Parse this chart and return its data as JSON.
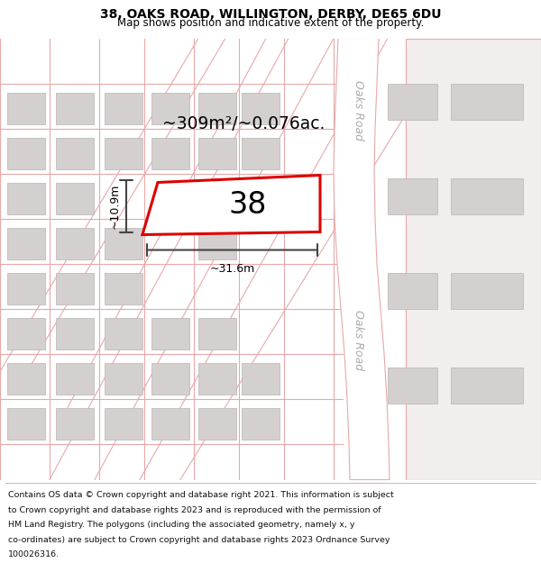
{
  "title": "38, OAKS ROAD, WILLINGTON, DERBY, DE65 6DU",
  "subtitle": "Map shows position and indicative extent of the property.",
  "footer_lines": [
    "Contains OS data © Crown copyright and database right 2021. This information is subject",
    "to Crown copyright and database rights 2023 and is reproduced with the permission of",
    "HM Land Registry. The polygons (including the associated geometry, namely x, y",
    "co-ordinates) are subject to Crown copyright and database rights 2023 Ordnance Survey",
    "100026316."
  ],
  "bg_color": "#f2eeee",
  "road_color": "#e8a8a8",
  "road_lw": 0.8,
  "building_fill": "#d4d0d0",
  "building_edge": "#b8b4b4",
  "highlight_fill": "#ffffff",
  "highlight_edge": "#dd0000",
  "highlight_lw": 2.2,
  "area_text": "~309m²/~0.076ac.",
  "number_text": "38",
  "dim_width": "~31.6m",
  "dim_height": "~10.9m",
  "oaks_road_label": "Oaks Road",
  "dim_color": "#444444",
  "road_label_color": "#aaaaaa",
  "title_fontsize": 10,
  "subtitle_fontsize": 8.5,
  "footer_fontsize": 6.8
}
